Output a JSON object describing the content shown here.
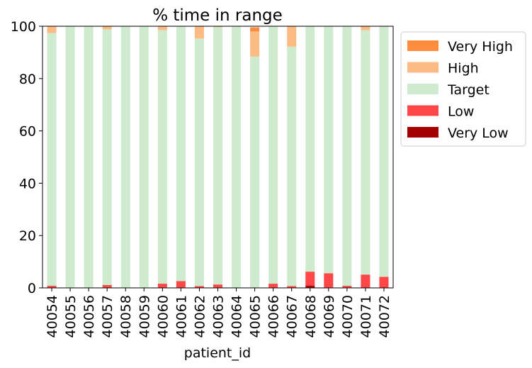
{
  "chart_data": {
    "type": "bar",
    "stacked": true,
    "title": "% time in range",
    "xlabel": "patient_id",
    "ylabel": "",
    "ylim": [
      0,
      100
    ],
    "yticks": [
      0,
      20,
      40,
      60,
      80,
      100
    ],
    "grid": false,
    "legend_position": "outside-right-top",
    "categories": [
      "40054",
      "40055",
      "40056",
      "40057",
      "40058",
      "40059",
      "40060",
      "40061",
      "40062",
      "40063",
      "40064",
      "40065",
      "40066",
      "40067",
      "40068",
      "40069",
      "40070",
      "40071",
      "40072"
    ],
    "series": [
      {
        "name": "Very Low",
        "color": "#a50000",
        "values": [
          0,
          0,
          0,
          0,
          0,
          0,
          0,
          0,
          0,
          0,
          0,
          0,
          0,
          0,
          0.8,
          0,
          0,
          0,
          0
        ]
      },
      {
        "name": "Low",
        "color": "#ff4747",
        "values": [
          0.8,
          0,
          0,
          1.1,
          0,
          0,
          1.6,
          2.6,
          0.7,
          1.3,
          0,
          0,
          1.6,
          0.7,
          5.4,
          5.6,
          0.8,
          5.1,
          4.2
        ]
      },
      {
        "name": "Target",
        "color": "#ceebd0",
        "values": [
          96.6,
          100,
          100,
          97.7,
          100,
          100,
          96.9,
          97.4,
          94.6,
          98.4,
          100,
          88.4,
          98.4,
          91.5,
          93.8,
          94.4,
          99.2,
          93.4,
          95.6
        ]
      },
      {
        "name": "High",
        "color": "#fdbb84",
        "values": [
          2.6,
          0,
          0,
          1.2,
          0,
          0,
          1.5,
          0,
          4.7,
          0.3,
          0,
          9.6,
          0,
          7.8,
          0,
          0,
          0,
          1.5,
          0.2
        ]
      },
      {
        "name": "Very High",
        "color": "#fd8d3c",
        "values": [
          0,
          0,
          0,
          0,
          0,
          0,
          0,
          0,
          0,
          0,
          0,
          1.6,
          0,
          0,
          0,
          0,
          0,
          0,
          0
        ]
      }
    ],
    "legend_order": [
      "Very High",
      "High",
      "Target",
      "Low",
      "Very Low"
    ]
  }
}
